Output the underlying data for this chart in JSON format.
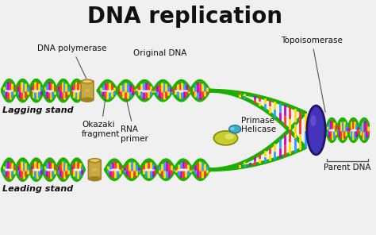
{
  "title": "DNA replication",
  "title_fontsize": 20,
  "title_fontweight": "bold",
  "bg_color": "#f0f0f0",
  "labels": {
    "DNA_polymerase": "DNA polymerase",
    "Original_DNA": "Original DNA",
    "Okazaki_fragment": "Okazaki\nfragment",
    "RNA_primer": "RNA\nprimer",
    "Primase": "Primase",
    "Helicase": "Helicase",
    "Topoisomerase": "Topoisomerase",
    "Parent_DNA": "Parent DNA",
    "Lagging_stand": "Lagging stand",
    "Leading_stand": "Leading stand"
  },
  "label_fontsize": 7.5,
  "dna_green": "#1ab000",
  "dna_colors_top": [
    "#ff3333",
    "#ffdd00",
    "#3399ff",
    "#cc00cc",
    "#ff3333",
    "#ffdd00"
  ],
  "dna_colors_bot": [
    "#ffdd00",
    "#3399ff",
    "#cc00cc",
    "#ff3333",
    "#ffdd00",
    "#3399ff"
  ],
  "polymerase_color": "#c8a840",
  "polymerase_dark": "#a08020",
  "polymerase_light": "#e8c860",
  "topoisomerase_color": "#4433bb",
  "topoisomerase_dark": "#221166",
  "helicase_color": "#c8cc33",
  "helicase_dark": "#888800",
  "primase_color": "#44aacc",
  "primase_dark": "#227799",
  "annotation_line_color": "#555555"
}
